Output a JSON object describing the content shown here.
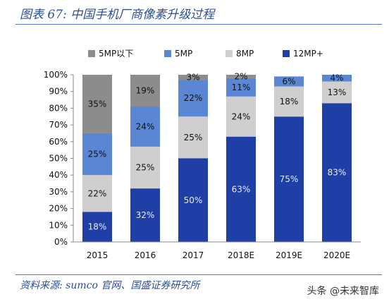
{
  "header": {
    "title": "图表 67:  中国手机厂商像素升级过程"
  },
  "footer": {
    "source": "资料来源: sumco 官网、国盛证券研究所",
    "watermark": "头条 @未来智库"
  },
  "chart_data": {
    "type": "bar",
    "stacked": true,
    "categories": [
      "2015",
      "2016",
      "2017",
      "2018E",
      "2019E",
      "2020E"
    ],
    "series": [
      {
        "name": "12MP+",
        "color": "#1f3fa6",
        "values": [
          18,
          32,
          50,
          63,
          75,
          83
        ],
        "labels": [
          "18%",
          "32%",
          "50%",
          "63%",
          "75%",
          "83%"
        ]
      },
      {
        "name": "8MP",
        "color": "#cfcfcf",
        "values": [
          22,
          25,
          25,
          24,
          18,
          13
        ],
        "labels": [
          "22%",
          "25%",
          "25%",
          "24%",
          "18%",
          "13%"
        ]
      },
      {
        "name": "5MP",
        "color": "#5b86d3",
        "values": [
          25,
          24,
          22,
          11,
          6,
          4
        ],
        "labels": [
          "25%",
          "24%",
          "22%",
          "11%",
          "6%",
          "4%"
        ]
      },
      {
        "name": "5MP以下",
        "color": "#8c8c8c",
        "values": [
          35,
          19,
          3,
          2,
          0,
          0
        ],
        "labels": [
          "35%",
          "19%",
          "3%",
          "2%",
          "",
          ""
        ]
      }
    ],
    "legend_order": [
      "5MP以下",
      "5MP",
      "8MP",
      "12MP+"
    ],
    "ylim": [
      0,
      100
    ],
    "yticks": [
      "0%",
      "10%",
      "20%",
      "30%",
      "40%",
      "50%",
      "60%",
      "70%",
      "80%",
      "90%",
      "100%"
    ],
    "legend_position": "top",
    "grid": false
  }
}
